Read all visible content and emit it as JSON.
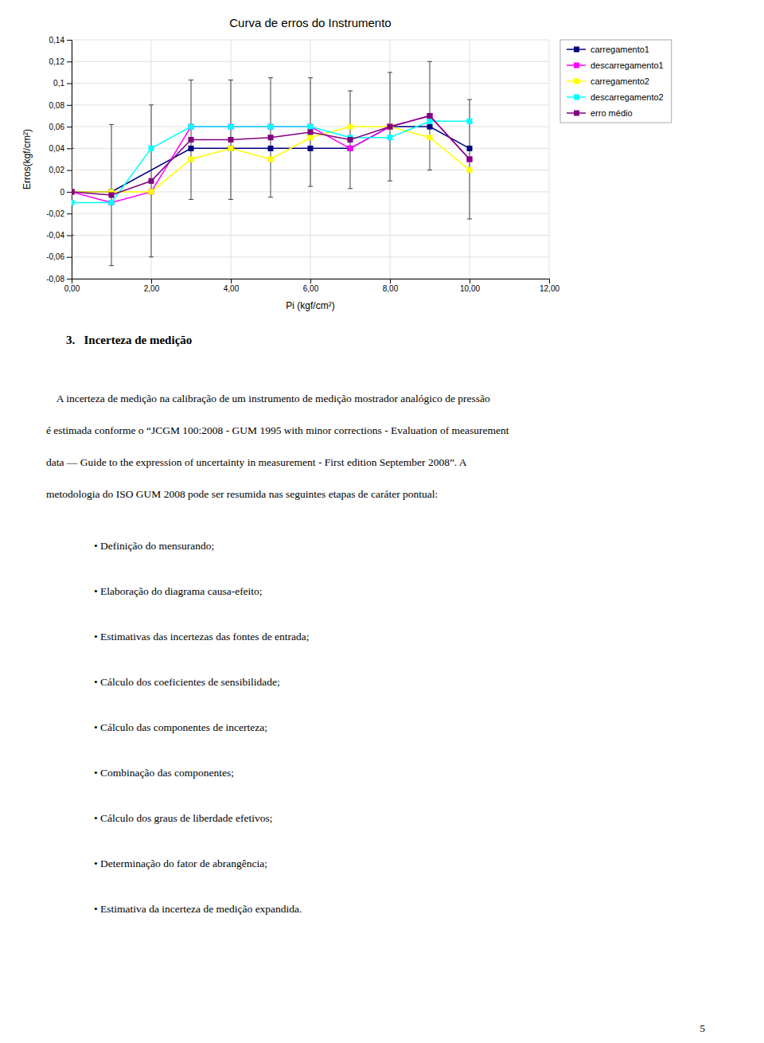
{
  "chart_data": {
    "type": "line",
    "title": "Curva de erros do Instrumento",
    "x_label": "Pi (kgf/cm²)",
    "y_label": "Erros(kgf/cm²)",
    "xlim": [
      0,
      12
    ],
    "ylim": [
      -0.08,
      0.14
    ],
    "xticks": [
      {
        "value": 0,
        "label": "0,00"
      },
      {
        "value": 2,
        "label": "2,00"
      },
      {
        "value": 4,
        "label": "4,00"
      },
      {
        "value": 6,
        "label": "6,00"
      },
      {
        "value": 8,
        "label": "8,00"
      },
      {
        "value": 10,
        "label": "10,00"
      },
      {
        "value": 12,
        "label": "12,00"
      }
    ],
    "yticks": [
      {
        "value": -0.08,
        "label": "-0,08"
      },
      {
        "value": -0.06,
        "label": "-0,06"
      },
      {
        "value": -0.04,
        "label": "-0,04"
      },
      {
        "value": -0.02,
        "label": "-0,02"
      },
      0,
      {
        "value": 0.02,
        "label": "0,02"
      },
      {
        "value": 0.04,
        "label": "0,04"
      },
      {
        "value": 0.06,
        "label": "0,06"
      },
      {
        "value": 0.08,
        "label": "0,08"
      },
      {
        "value": 0.1,
        "label": "0,1"
      },
      {
        "value": 0.12,
        "label": "0,12"
      },
      {
        "value": 0.14,
        "label": "0,14"
      }
    ],
    "grid": true,
    "legend": "right",
    "marker": "square",
    "series": [
      {
        "name": "carregamento1",
        "color": "#000080",
        "x": [
          0,
          1,
          3,
          4,
          5,
          6,
          7,
          8,
          9,
          10
        ],
        "values": [
          0.0,
          0.0,
          0.04,
          0.04,
          0.04,
          0.04,
          0.04,
          0.06,
          0.06,
          0.04
        ]
      },
      {
        "name": "descarregamento1",
        "color": "#FF00FF",
        "x": [
          0,
          1,
          2,
          3,
          4,
          5,
          6,
          7,
          8,
          9,
          10
        ],
        "values": [
          0.0,
          -0.01,
          0.0,
          0.06,
          0.06,
          0.06,
          0.06,
          0.04,
          0.06,
          0.07,
          0.03
        ]
      },
      {
        "name": "carregamento2",
        "color": "#FFFF00",
        "x": [
          0,
          1,
          2,
          3,
          4,
          5,
          6,
          7,
          8,
          9,
          10
        ],
        "values": [
          0.0,
          0.0,
          0.0,
          0.03,
          0.04,
          0.03,
          0.05,
          0.06,
          0.06,
          0.05,
          0.02
        ]
      },
      {
        "name": "descarregamento2",
        "color": "#00FFFF",
        "x": [
          0,
          1,
          2,
          3,
          4,
          5,
          6,
          7,
          8,
          9,
          10
        ],
        "values": [
          -0.01,
          -0.01,
          0.04,
          0.06,
          0.06,
          0.06,
          0.06,
          0.05,
          0.05,
          0.065,
          0.065
        ]
      },
      {
        "name": "erro médio",
        "color": "#800080",
        "x": [
          0,
          1,
          2,
          3,
          4,
          5,
          6,
          7,
          8,
          9,
          10
        ],
        "values": [
          0.0,
          -0.003,
          0.01,
          0.048,
          0.048,
          0.05,
          0.055,
          0.048,
          0.06,
          0.07,
          0.03
        ],
        "error": [
          0.04,
          0.065,
          0.07,
          0.055,
          0.055,
          0.055,
          0.05,
          0.045,
          0.05,
          0.05,
          0.055
        ]
      }
    ]
  },
  "section_title": "3.   Incerteza de medição",
  "paragraph": [
    "    A incerteza de medição na calibração de um instrumento de medição mostrador analógico de pressão",
    "é estimada conforme o “JCGM 100:2008 - GUM 1995 with minor corrections - Evaluation of measurement",
    "data — Guide to the expression of uncertainty in measurement - First edition September 2008”. A",
    "metodologia do ISO GUM 2008 pode ser resumida nas seguintes etapas de caráter pontual:"
  ],
  "bullet_items": [
    "• Definição do mensurando;",
    "• Elaboração do diagrama causa-efeito;",
    "• Estimativas das incertezas das fontes de entrada;",
    "• Cálculo dos coeficientes de sensibilidade;",
    "• Cálculo das componentes de incerteza;",
    "• Combinação das componentes;",
    "• Cálculo dos graus de liberdade efetivos;",
    "• Determinação do fator de abrangência;",
    "• Estimativa da incerteza de medição expandida."
  ],
  "page_number": "5"
}
